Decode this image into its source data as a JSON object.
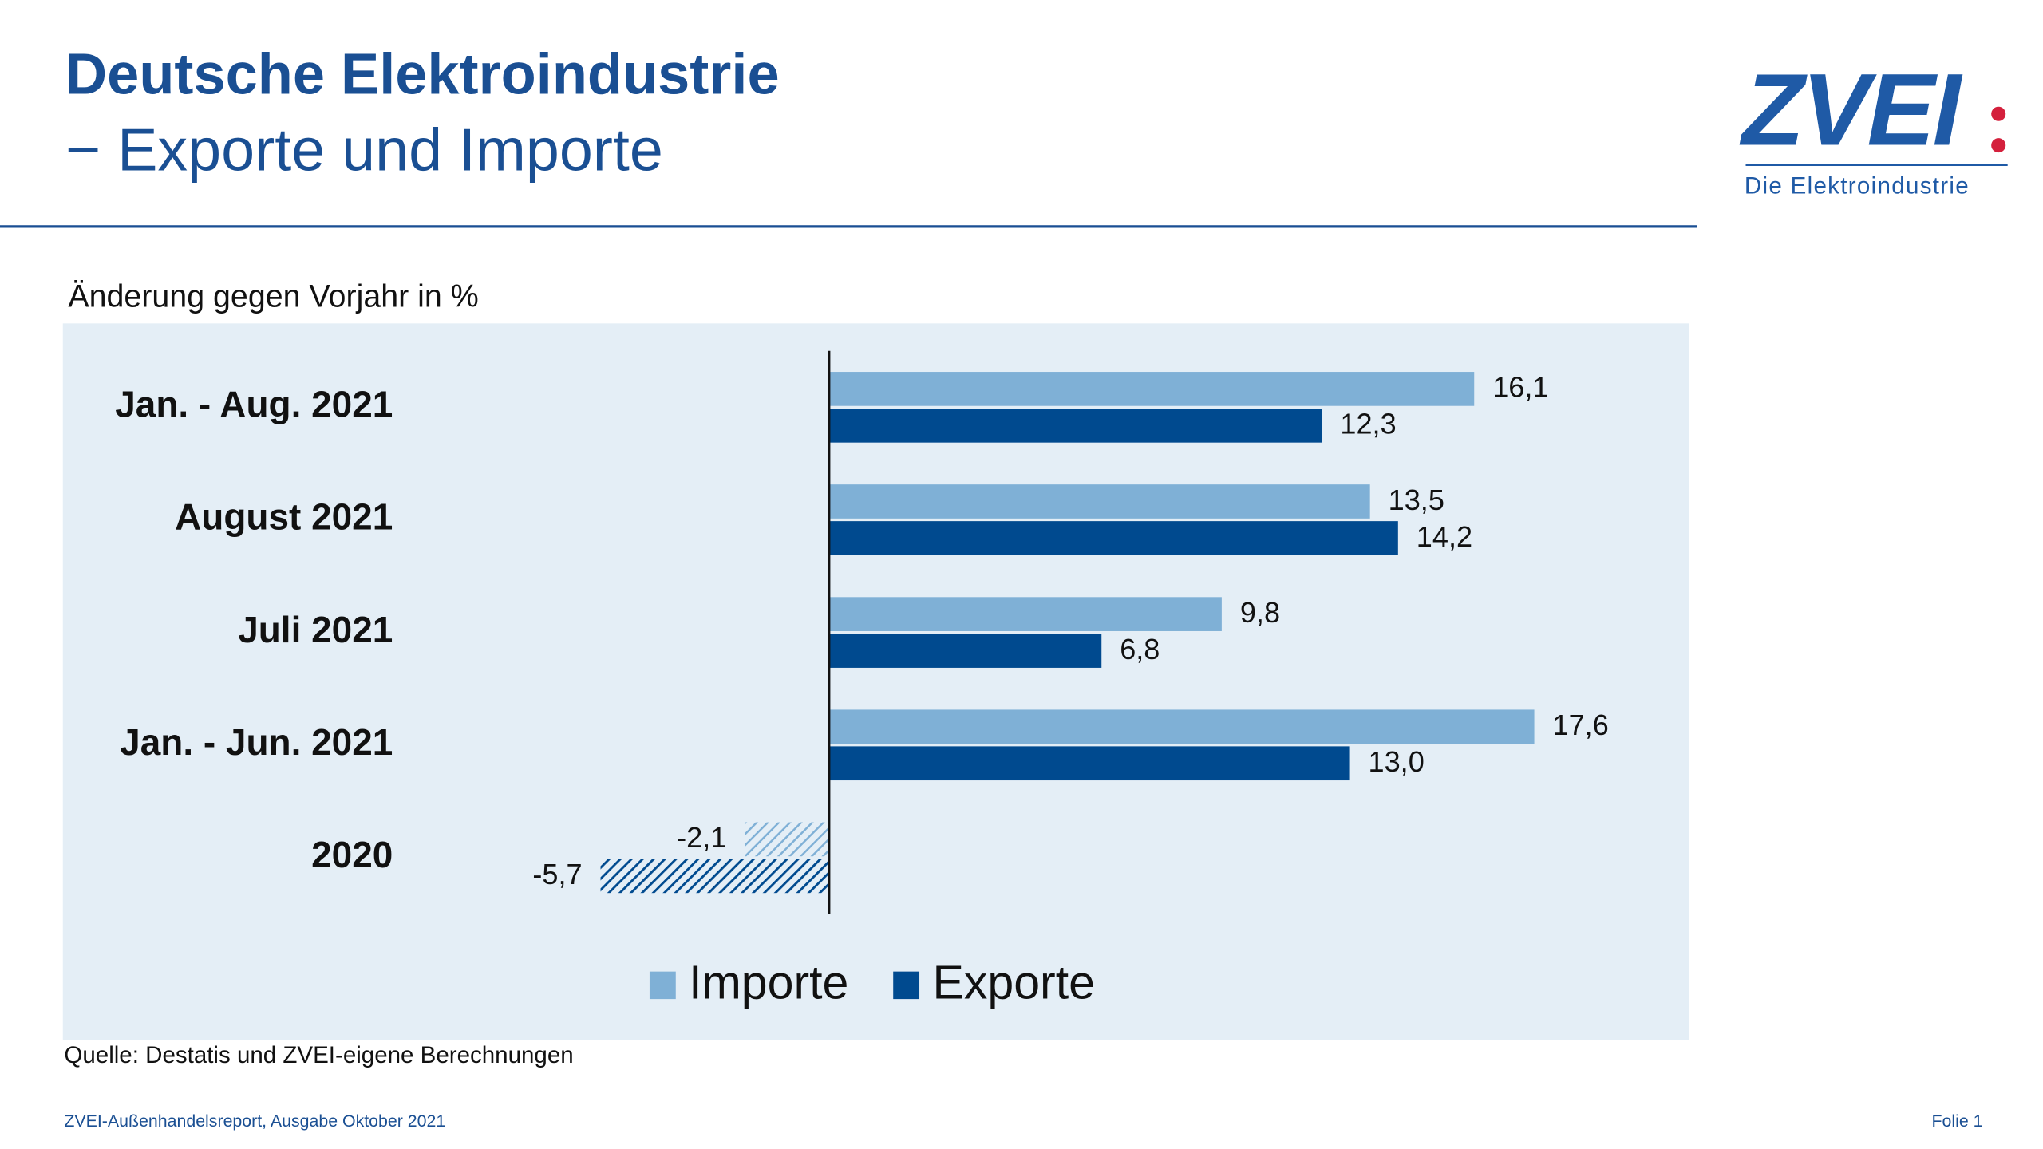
{
  "header": {
    "title": "Deutsche Elektroindustrie",
    "subtitle": "− Exporte und Importe",
    "logo": "ZVEI",
    "logo_tagline": "Die Elektroindustrie"
  },
  "chart_data": {
    "type": "hbar",
    "axis_label": "Änderung gegen Vorjahr in %",
    "categories": [
      "Jan. - Aug. 2021",
      "August 2021",
      "Juli 2021",
      "Jan. - Jun. 2021",
      "2020"
    ],
    "series": [
      {
        "name": "Importe",
        "color": "#7fb0d6",
        "values": [
          16.1,
          13.5,
          9.8,
          17.6,
          -2.1
        ],
        "value_labels": [
          "16,1",
          "13,5",
          "9,8",
          "17,6",
          "-2,1"
        ]
      },
      {
        "name": "Exporte",
        "color": "#004a8f",
        "values": [
          12.3,
          14.2,
          6.8,
          13.0,
          -5.7
        ],
        "value_labels": [
          "12,3",
          "14,2",
          "6,8",
          "13,0",
          "-5,7"
        ]
      }
    ],
    "xlim": [
      -10,
      20
    ],
    "hatch_negative": true,
    "legend": "bottom",
    "source": "Quelle: Destatis und ZVEI-eigene Berechnungen"
  },
  "footer": {
    "left": "ZVEI-Außenhandelsreport, Ausgabe Oktober 2021",
    "right": "Folie 1"
  }
}
